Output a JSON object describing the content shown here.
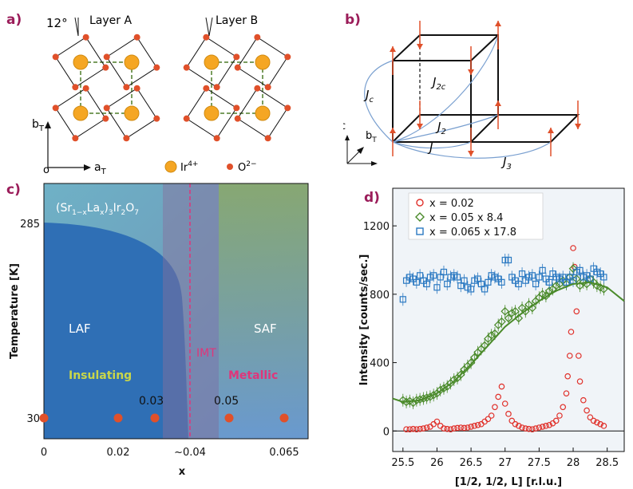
{
  "panels": {
    "a": {
      "label": "a)",
      "angle": "12°",
      "layer_a": "Layer A",
      "layer_b": "Layer B",
      "axis_y_main": "b",
      "axis_y_sub": "T",
      "axis_x_main": "a",
      "axis_x_sub": "T",
      "origin": "o",
      "legend_ir_main": "Ir",
      "legend_ir_sup": "4+",
      "legend_o_main": "O",
      "legend_o_sup": "2−",
      "colors": {
        "ir": "#f5a623",
        "o": "#e0502a",
        "bond": "#111111",
        "dashed": "#4f7d2a"
      }
    },
    "b": {
      "label": "b)",
      "jc_main": "J",
      "jc_sub": "c",
      "j2c_main": "J",
      "j2c_sub": "2c",
      "j2_main": "J",
      "j2_sub": "2",
      "j_main": "J",
      "j3_main": "J",
      "j3_sub": "3",
      "axis_c": "c",
      "axis_b_main": "b",
      "axis_b_sub": "T",
      "colors": {
        "arrow": "#e0502a",
        "exchange": "#7aa0d0"
      }
    },
    "c": {
      "label": "c)",
      "formula_pre": "(Sr",
      "formula_sub1": "1−x",
      "formula_mid": "La",
      "formula_sub2": "x",
      "formula_mid2": ")",
      "formula_sub3": "3",
      "formula_mid3": "Ir",
      "formula_sub4": "2",
      "formula_mid4": "O",
      "formula_sub5": "7",
      "laf": "LAF",
      "saf": "SAF",
      "imt": "IMT",
      "insulating": "Insulating",
      "metallic": "Metallic",
      "point_label_003": "0.03",
      "point_label_005": "0.05",
      "ylabel": "Temperature [K]",
      "xlabel": "x",
      "yticks": [
        "285",
        "30"
      ],
      "xticks": [
        "0",
        "0.02",
        "~0.04",
        "0.065"
      ],
      "colors": {
        "laf": "#2f6fb5",
        "points": "#e0502a",
        "imt_line": "#e0357a",
        "insulating": "#c9d64a",
        "metallic": "#e0357a"
      }
    },
    "d": {
      "label": "d)"
    }
  },
  "chart_data": {
    "type": "scatter",
    "xlabel": "[1/2, 1/2, L] [r.l.u.]",
    "ylabel": "Intensity [counts/sec.]",
    "xlim": [
      25.35,
      28.75
    ],
    "ylim": [
      -120,
      1420
    ],
    "xticks": [
      "25.5",
      "26",
      "26.5",
      "27",
      "27.5",
      "28",
      "28.5"
    ],
    "yticks": [
      "0",
      "400",
      "800",
      "1200"
    ],
    "grid": false,
    "legend_position": "top-left",
    "series": [
      {
        "name": "x = 0.02",
        "marker": "circle",
        "color": "#e0302a",
        "x": [
          25.55,
          25.6,
          25.65,
          25.7,
          25.75,
          25.8,
          25.85,
          25.9,
          25.95,
          26.0,
          26.05,
          26.1,
          26.15,
          26.2,
          26.25,
          26.3,
          26.35,
          26.4,
          26.45,
          26.5,
          26.55,
          26.6,
          26.65,
          26.7,
          26.75,
          26.8,
          26.85,
          26.9,
          26.95,
          27.0,
          27.05,
          27.1,
          27.15,
          27.2,
          27.25,
          27.3,
          27.35,
          27.4,
          27.45,
          27.5,
          27.55,
          27.6,
          27.65,
          27.7,
          27.75,
          27.8,
          27.85,
          27.9,
          27.92,
          27.95,
          27.97,
          28.0,
          28.02,
          28.05,
          28.08,
          28.1,
          28.15,
          28.2,
          28.25,
          28.3,
          28.35,
          28.4,
          28.45
        ],
        "y": [
          10,
          10,
          12,
          10,
          12,
          15,
          20,
          25,
          40,
          55,
          30,
          15,
          12,
          10,
          15,
          18,
          20,
          18,
          20,
          25,
          30,
          35,
          40,
          55,
          70,
          90,
          140,
          200,
          260,
          160,
          100,
          60,
          40,
          30,
          20,
          15,
          12,
          10,
          15,
          20,
          25,
          30,
          35,
          45,
          60,
          90,
          140,
          220,
          320,
          440,
          580,
          1070,
          960,
          700,
          440,
          290,
          180,
          120,
          80,
          60,
          50,
          40,
          30
        ]
      },
      {
        "name": "x = 0.05 x 8.4",
        "marker": "diamond",
        "color": "#4a8a2a",
        "x": [
          25.5,
          25.55,
          25.6,
          25.65,
          25.7,
          25.75,
          25.8,
          25.85,
          25.9,
          25.95,
          26.0,
          26.05,
          26.1,
          26.15,
          26.2,
          26.25,
          26.3,
          26.35,
          26.4,
          26.45,
          26.5,
          26.55,
          26.6,
          26.65,
          26.7,
          26.75,
          26.8,
          26.85,
          26.9,
          26.95,
          27.0,
          27.05,
          27.1,
          27.15,
          27.2,
          27.25,
          27.3,
          27.35,
          27.4,
          27.45,
          27.5,
          27.55,
          27.6,
          27.65,
          27.7,
          27.75,
          27.8,
          27.85,
          27.9,
          27.95,
          28.0,
          28.05,
          28.1,
          28.15,
          28.2,
          28.25,
          28.3,
          28.35,
          28.4,
          28.45
        ],
        "y": [
          180,
          170,
          175,
          165,
          180,
          185,
          190,
          195,
          200,
          210,
          220,
          240,
          250,
          260,
          280,
          300,
          310,
          330,
          360,
          380,
          400,
          430,
          460,
          480,
          500,
          540,
          560,
          570,
          620,
          640,
          700,
          660,
          690,
          700,
          660,
          720,
          700,
          740,
          720,
          760,
          780,
          800,
          790,
          820,
          830,
          850,
          860,
          880,
          860,
          900,
          950,
          890,
          850,
          870,
          860,
          890,
          870,
          850,
          840,
          830
        ]
      },
      {
        "name": "x = 0.065 x 17.8",
        "marker": "square",
        "color": "#2b79c2",
        "x": [
          25.5,
          25.55,
          25.6,
          25.65,
          25.7,
          25.75,
          25.8,
          25.85,
          25.9,
          25.95,
          26.0,
          26.05,
          26.1,
          26.15,
          26.2,
          26.25,
          26.3,
          26.35,
          26.4,
          26.45,
          26.5,
          26.55,
          26.6,
          26.65,
          26.7,
          26.75,
          26.8,
          26.85,
          26.9,
          26.95,
          27.0,
          27.05,
          27.1,
          27.15,
          27.2,
          27.25,
          27.3,
          27.35,
          27.4,
          27.45,
          27.5,
          27.55,
          27.6,
          27.65,
          27.7,
          27.75,
          27.8,
          27.85,
          27.9,
          27.95,
          28.0,
          28.05,
          28.1,
          28.15,
          28.2,
          28.25,
          28.3,
          28.35,
          28.4,
          28.45
        ],
        "y": [
          770,
          880,
          900,
          890,
          870,
          910,
          880,
          860,
          900,
          910,
          840,
          900,
          930,
          860,
          900,
          910,
          900,
          850,
          880,
          840,
          830,
          880,
          890,
          860,
          830,
          870,
          910,
          900,
          890,
          870,
          1000,
          1000,
          900,
          880,
          860,
          920,
          880,
          900,
          910,
          860,
          900,
          940,
          890,
          870,
          920,
          900,
          890,
          900,
          870,
          900,
          880,
          930,
          940,
          900,
          910,
          890,
          950,
          930,
          920,
          900
        ]
      },
      {
        "name": "",
        "marker": "line",
        "color": "#4a8a2a",
        "x": [
          25.35,
          25.5,
          25.75,
          26.0,
          26.25,
          26.5,
          26.75,
          27.0,
          27.25,
          27.5,
          27.75,
          28.0,
          28.25,
          28.5,
          28.75
        ],
        "y": [
          190,
          170,
          180,
          220,
          290,
          390,
          500,
          610,
          690,
          760,
          820,
          860,
          870,
          840,
          760
        ]
      }
    ]
  }
}
